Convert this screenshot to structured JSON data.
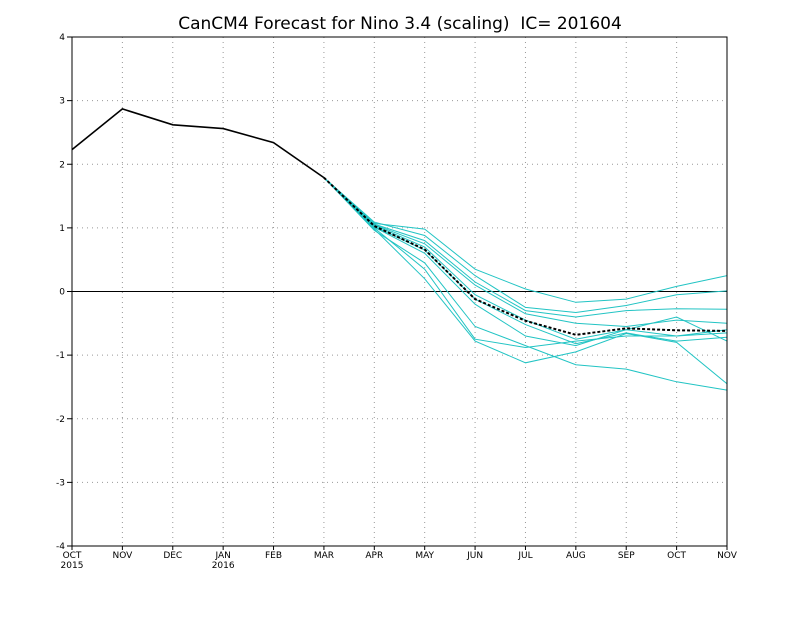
{
  "chart_data": {
    "type": "line",
    "title": "CanCM4 Forecast for Nino 3.4 (scaling)  IC= 201604",
    "xlabel": "",
    "ylabel": "",
    "ylim": [
      -4,
      4
    ],
    "yticks": [
      -4,
      -3,
      -2,
      -1,
      0,
      1,
      2,
      3,
      4
    ],
    "xticks": [
      {
        "label": "OCT",
        "sub": "2015"
      },
      {
        "label": "NOV",
        "sub": ""
      },
      {
        "label": "DEC",
        "sub": ""
      },
      {
        "label": "JAN",
        "sub": "2016"
      },
      {
        "label": "FEB",
        "sub": ""
      },
      {
        "label": "MAR",
        "sub": ""
      },
      {
        "label": "APR",
        "sub": ""
      },
      {
        "label": "MAY",
        "sub": ""
      },
      {
        "label": "JUN",
        "sub": ""
      },
      {
        "label": "JUL",
        "sub": ""
      },
      {
        "label": "AUG",
        "sub": ""
      },
      {
        "label": "SEP",
        "sub": ""
      },
      {
        "label": "OCT",
        "sub": ""
      },
      {
        "label": "NOV",
        "sub": ""
      }
    ],
    "grid": true,
    "zero_line": true,
    "colors": {
      "observed": "#000000",
      "members": "#22c4c4",
      "ensemble_mean": "#000000",
      "grid": "#999999"
    },
    "observed": {
      "x": [
        0,
        1,
        2,
        3,
        4,
        5
      ],
      "values": [
        2.23,
        2.87,
        2.62,
        2.56,
        2.34,
        1.79
      ]
    },
    "members": [
      {
        "x": [
          5,
          6,
          7,
          8,
          9,
          10,
          11,
          12,
          13
        ],
        "values": [
          1.79,
          1.07,
          0.98,
          0.35,
          0.04,
          -0.17,
          -0.12,
          0.08,
          0.25
        ]
      },
      {
        "x": [
          5,
          6,
          7,
          8,
          9,
          10,
          11,
          12,
          13
        ],
        "values": [
          1.79,
          1.09,
          0.88,
          0.25,
          -0.25,
          -0.33,
          -0.22,
          -0.05,
          0.01
        ]
      },
      {
        "x": [
          5,
          6,
          7,
          8,
          9,
          10,
          11,
          12,
          13
        ],
        "values": [
          1.79,
          1.06,
          0.8,
          0.15,
          -0.3,
          -0.4,
          -0.3,
          -0.27,
          -0.28
        ]
      },
      {
        "x": [
          5,
          6,
          7,
          8,
          9,
          10,
          11,
          12,
          13
        ],
        "values": [
          1.79,
          1.05,
          0.75,
          0.1,
          -0.35,
          -0.5,
          -0.55,
          -0.45,
          -0.5
        ]
      },
      {
        "x": [
          5,
          6,
          7,
          8,
          9,
          10,
          11,
          12,
          13
        ],
        "values": [
          1.79,
          1.04,
          0.7,
          -0.05,
          -0.45,
          -0.75,
          -0.6,
          -0.7,
          -0.65
        ]
      },
      {
        "x": [
          5,
          6,
          7,
          8,
          9,
          10,
          11,
          12,
          13
        ],
        "values": [
          1.79,
          1.02,
          0.65,
          -0.12,
          -0.52,
          -0.82,
          -0.65,
          -0.78,
          -0.72
        ]
      },
      {
        "x": [
          5,
          6,
          7,
          8,
          9,
          10,
          11,
          12,
          13
        ],
        "values": [
          1.79,
          1.01,
          0.6,
          -0.2,
          -0.7,
          -0.85,
          -0.6,
          -0.4,
          -0.78
        ]
      },
      {
        "x": [
          5,
          6,
          7,
          8,
          9,
          10,
          11,
          12,
          13
        ],
        "values": [
          1.79,
          1.0,
          0.35,
          -0.75,
          -0.88,
          -0.78,
          -0.7,
          -0.7,
          -0.6
        ]
      },
      {
        "x": [
          5,
          6,
          7,
          8,
          9,
          10,
          11,
          12,
          13
        ],
        "values": [
          1.79,
          0.98,
          0.2,
          -0.78,
          -1.12,
          -0.95,
          -0.66,
          -0.8,
          -1.45
        ]
      },
      {
        "x": [
          5,
          6,
          7,
          8,
          9,
          10,
          11,
          12,
          13
        ],
        "values": [
          1.79,
          0.96,
          0.45,
          -0.55,
          -0.85,
          -1.15,
          -1.22,
          -1.42,
          -1.55
        ]
      }
    ],
    "ensemble_mean": {
      "x": [
        5,
        6,
        7,
        8,
        9,
        10,
        11,
        12,
        13
      ],
      "values": [
        1.79,
        1.03,
        0.66,
        -0.12,
        -0.46,
        -0.68,
        -0.58,
        -0.61,
        -0.62
      ]
    }
  }
}
